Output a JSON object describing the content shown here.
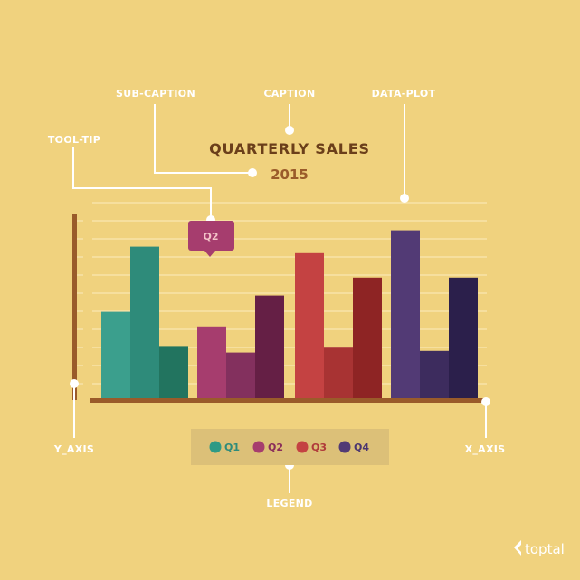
{
  "caption": "QUARTERLY SALES",
  "subcaption": "2015",
  "annotations": {
    "sub_caption": "SUB-CAPTION",
    "caption": "CAPTION",
    "data_plot": "DATA-PLOT",
    "tool_tip": "TOOL-TIP",
    "y_axis": "Y_AXIS",
    "x_axis": "X_AXIS",
    "legend": "LEGEND"
  },
  "tooltip": {
    "text": "Q2"
  },
  "brand": "toptal",
  "colors": {
    "background": "#f0d27e",
    "annotation": "#ffffff",
    "axis": "#9a5b2a",
    "legend_box": "#dcc078"
  },
  "chart_data": {
    "type": "bar",
    "title": "QUARTERLY SALES",
    "subtitle": "2015",
    "ylim": [
      0,
      12
    ],
    "grid": true,
    "legend_position": "bottom",
    "series": [
      {
        "name": "Q1",
        "values": [
          5.3,
          9.3,
          3.2
        ]
      },
      {
        "name": "Q2",
        "values": [
          4.4,
          2.8,
          6.3
        ]
      },
      {
        "name": "Q3",
        "values": [
          8.9,
          3.1,
          7.4
        ]
      },
      {
        "name": "Q4",
        "values": [
          10.3,
          2.9,
          7.4
        ]
      }
    ],
    "bar_colors": [
      [
        "#3b9f8d",
        "#2e8b7a",
        "#22745f"
      ],
      [
        "#a63d6e",
        "#83305e",
        "#651f45"
      ],
      [
        "#c44242",
        "#a83333",
        "#8e2424"
      ],
      [
        "#523a75",
        "#3d2c5e",
        "#2b1f4b"
      ]
    ],
    "legend_colors": [
      "#2e9a85",
      "#a63d6e",
      "#c44242",
      "#523a75"
    ],
    "legend_text_colors": [
      "#2e8b7a",
      "#8a2d5a",
      "#b03a3a",
      "#4a3570"
    ]
  }
}
